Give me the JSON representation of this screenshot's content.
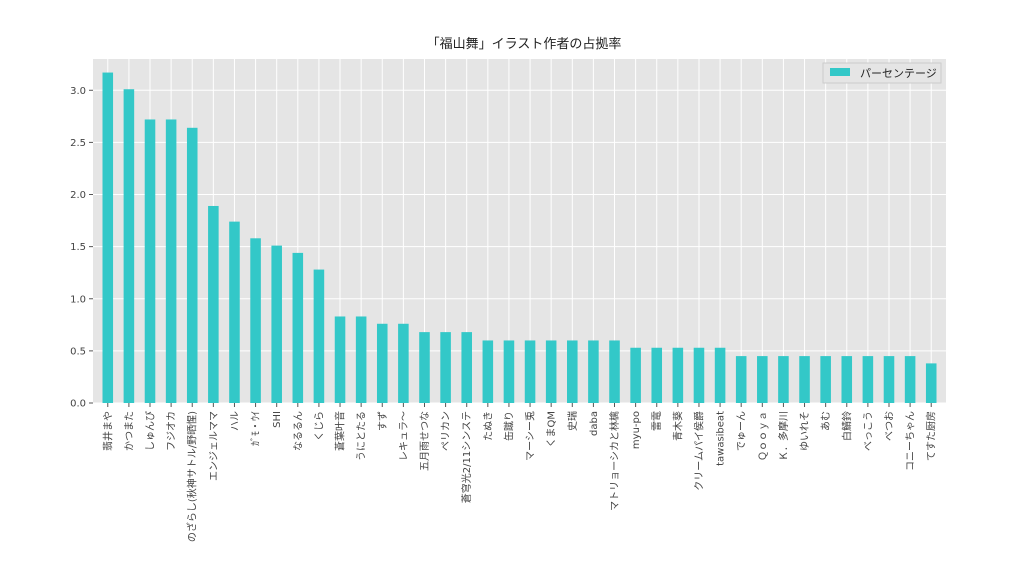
{
  "chart_data": {
    "type": "bar",
    "title": "「福山舞」イラスト作者の占拠率",
    "xlabel": "",
    "ylabel": "",
    "ylim": [
      0,
      3.3
    ],
    "yticks": [
      0.0,
      0.5,
      1.0,
      1.5,
      2.0,
      2.5,
      3.0
    ],
    "ytick_labels": [
      "0.0",
      "0.5",
      "1.0",
      "1.5",
      "2.0",
      "2.5",
      "3.0"
    ],
    "grid": true,
    "legend_position": "top-right",
    "categories": [
      "翡井まや",
      "かつまた",
      "しゅんぴ",
      "フジオカ",
      "のざらし(秋神サトル/野晒惺)",
      "エンジェルママ",
      "ハル",
      "ｶﾞﾓ・ｳｲ",
      "SHI",
      "なるるん",
      "くじら",
      "蒼葉叶音",
      "うにとたる",
      "すず",
      "レキュラ～",
      "五月雨せつな",
      "ペリカン",
      "蒼穹光2/11シンステ",
      "たぬき",
      "缶蹴り",
      "マーシー兎",
      "くまQM",
      "史瑞",
      "daba",
      "マトリョーシカと林檎",
      "myu-po",
      "雷電",
      "青木葵",
      "クリームパイ侯爵",
      "tawasibeat",
      "でゅーん",
      "Ｑｏｏｙａ",
      "Ｋ．多摩川",
      "ゆいれそ",
      "あむ",
      "白鯖鈴",
      "べっこう",
      "べつお",
      "コニーちゃん",
      "てすた厨房"
    ],
    "series": [
      {
        "name": "パーセンテージ",
        "color": "#33c8c8",
        "values": [
          3.17,
          3.01,
          2.72,
          2.72,
          2.64,
          1.89,
          1.74,
          1.58,
          1.51,
          1.44,
          1.28,
          0.83,
          0.83,
          0.76,
          0.76,
          0.68,
          0.68,
          0.68,
          0.6,
          0.6,
          0.6,
          0.6,
          0.6,
          0.6,
          0.6,
          0.53,
          0.53,
          0.53,
          0.53,
          0.53,
          0.45,
          0.45,
          0.45,
          0.45,
          0.45,
          0.45,
          0.45,
          0.45,
          0.45,
          0.38
        ]
      }
    ]
  }
}
